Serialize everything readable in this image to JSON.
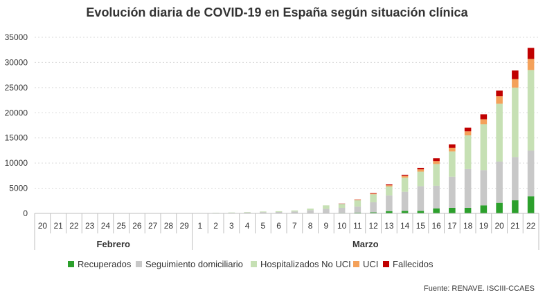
{
  "chart_data": {
    "type": "bar",
    "stacked": true,
    "title": "Evolución diaria de COVID-19 en España según situación clínica",
    "ylim": [
      0,
      35000
    ],
    "yticks": [
      0,
      5000,
      10000,
      15000,
      20000,
      25000,
      30000,
      35000
    ],
    "grid": true,
    "legend_position": "bottom",
    "categories": [
      "20",
      "21",
      "22",
      "23",
      "24",
      "25",
      "26",
      "27",
      "28",
      "29",
      "1",
      "2",
      "3",
      "4",
      "5",
      "6",
      "7",
      "8",
      "9",
      "10",
      "11",
      "12",
      "13",
      "14",
      "15",
      "16",
      "17",
      "18",
      "19",
      "20",
      "21",
      "22"
    ],
    "groups": [
      {
        "label": "Febrero",
        "count": 10
      },
      {
        "label": "Marzo",
        "count": 22
      }
    ],
    "series": [
      {
        "name": "Recuperados",
        "color": "#2ca02c",
        "values": [
          0,
          0,
          0,
          0,
          0,
          0,
          0,
          0,
          0,
          0,
          0,
          0,
          0,
          0,
          0,
          0,
          0,
          0,
          0,
          100,
          150,
          200,
          450,
          500,
          500,
          1000,
          1100,
          1100,
          1600,
          2100,
          2600,
          3400
        ]
      },
      {
        "name": "Seguimiento domiciliario",
        "color": "#c8c8c8",
        "values": [
          0,
          0,
          0,
          0,
          0,
          0,
          0,
          0,
          0,
          0,
          50,
          80,
          120,
          180,
          250,
          280,
          380,
          650,
          900,
          1000,
          1200,
          2000,
          3100,
          3800,
          4900,
          4500,
          6200,
          7700,
          7000,
          8200,
          8600,
          9100
        ]
      },
      {
        "name": "Hospitalizados No UCI",
        "color": "#c6e0b4",
        "values": [
          0,
          0,
          0,
          0,
          0,
          0,
          0,
          0,
          0,
          0,
          20,
          40,
          60,
          80,
          120,
          150,
          200,
          300,
          700,
          800,
          1250,
          1600,
          1800,
          2800,
          2900,
          4300,
          5000,
          6700,
          9100,
          11500,
          13800,
          16000
        ]
      },
      {
        "name": "UCI",
        "color": "#f4a15a",
        "values": [
          0,
          0,
          0,
          0,
          0,
          0,
          0,
          0,
          0,
          0,
          0,
          0,
          0,
          0,
          0,
          0,
          0,
          0,
          0,
          0,
          100,
          120,
          250,
          350,
          450,
          600,
          750,
          800,
          1000,
          1500,
          1700,
          2200
        ]
      },
      {
        "name": "Fallecidos",
        "color": "#c00000",
        "values": [
          0,
          0,
          0,
          0,
          0,
          0,
          0,
          0,
          0,
          0,
          0,
          0,
          0,
          0,
          0,
          0,
          0,
          0,
          0,
          50,
          60,
          100,
          150,
          200,
          300,
          550,
          650,
          750,
          1000,
          1100,
          1700,
          2200
        ]
      }
    ],
    "source": "Fuente: RENAVE. ISCIII-CCAES"
  }
}
